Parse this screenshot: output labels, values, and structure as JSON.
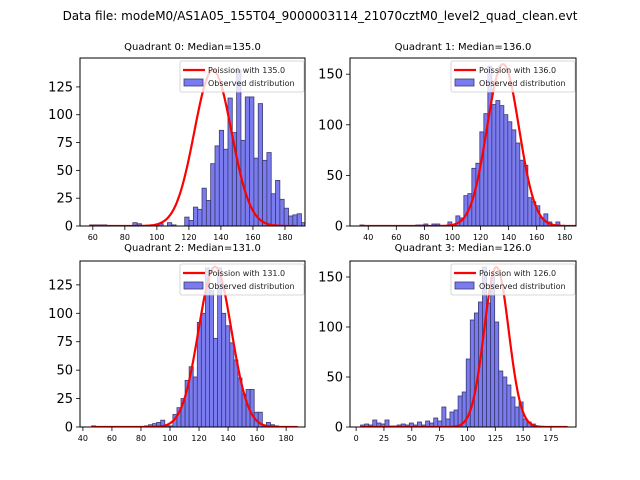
{
  "figure": {
    "suptitle": "Data file: modeM0/AS1A05_155T04_9000003114_21070cztM0_level2_quad_clean.evt"
  },
  "colors": {
    "bar_fill": "#7b7bf0",
    "bar_edge": "#3a3a70",
    "poisson_line": "#ff0000"
  },
  "chart_data": [
    {
      "type": "bar",
      "subtype": "histogram-with-curve",
      "title": "Quadrant 0: Median=135.0",
      "xlabel": "",
      "ylabel": "",
      "xlim": [
        52,
        192.5
      ],
      "ylim": [
        0,
        151
      ],
      "xticks": [
        60,
        80,
        100,
        120,
        140,
        160,
        180
      ],
      "yticks": [
        0,
        25,
        50,
        75,
        100,
        125
      ],
      "grid": false,
      "legend": {
        "placement": "top-right",
        "entries": [
          "Poission with 135.0",
          "Observed distribution"
        ]
      },
      "bin_width": 2.7,
      "bins_start": 58,
      "counts": [
        1,
        1,
        1,
        1,
        0,
        0,
        0,
        0,
        0,
        0,
        3,
        2,
        0,
        0,
        0,
        1,
        2,
        0,
        3,
        1,
        0,
        0,
        8,
        5,
        17,
        15,
        34,
        23,
        56,
        72,
        86,
        69,
        115,
        84,
        140,
        77,
        116,
        116,
        61,
        110,
        59,
        66,
        29,
        41,
        24,
        16,
        9,
        10,
        11,
        3,
        6,
        3,
        3,
        1
      ],
      "poisson": {
        "mean": 135.0,
        "peak": 140,
        "sigma": 11.6,
        "x_start": 58,
        "x_end": 187
      }
    },
    {
      "type": "bar",
      "subtype": "histogram-with-curve",
      "title": "Quadrant 1: Median=136.0",
      "xlabel": "",
      "ylabel": "",
      "xlim": [
        27,
        188
      ],
      "ylim": [
        0,
        166
      ],
      "xticks": [
        40,
        60,
        80,
        100,
        120,
        140,
        160,
        180
      ],
      "yticks": [
        0,
        50,
        100,
        150
      ],
      "grid": false,
      "legend": {
        "placement": "top-right",
        "entries": [
          "Poission with 136.0",
          "Observed distribution"
        ]
      },
      "bin_width": 2.85,
      "bins_start": 34,
      "counts": [
        1,
        0,
        0,
        0,
        0,
        0,
        0,
        0,
        0,
        0,
        0,
        0,
        0,
        0,
        1,
        1,
        2,
        0,
        2,
        2,
        0,
        0,
        4,
        1,
        10,
        8,
        30,
        32,
        57,
        62,
        93,
        111,
        158,
        120,
        124,
        119,
        110,
        103,
        95,
        82,
        65,
        60,
        28,
        24,
        20,
        8,
        12,
        4,
        1,
        4
      ],
      "poisson": {
        "mean": 136.0,
        "peak": 160,
        "sigma": 11.4,
        "x_start": 34,
        "x_end": 188
      }
    },
    {
      "type": "bar",
      "subtype": "histogram-with-curve",
      "title": "Quadrant 2: Median=131.0",
      "xlabel": "",
      "ylabel": "",
      "xlim": [
        38,
        193
      ],
      "ylim": [
        0,
        146
      ],
      "xticks": [
        40,
        60,
        80,
        100,
        120,
        140,
        160,
        180
      ],
      "yticks": [
        0,
        25,
        50,
        75,
        100,
        125
      ],
      "grid": false,
      "legend": {
        "placement": "top-right",
        "entries": [
          "Poission with 131.0",
          "Observed distribution"
        ]
      },
      "bin_width": 2.8,
      "bins_start": 46,
      "counts": [
        1,
        0,
        0,
        0,
        0,
        0,
        0,
        0,
        0,
        0,
        0,
        0,
        0,
        1,
        2,
        3,
        4,
        6,
        1,
        1,
        11,
        17,
        25,
        41,
        53,
        44,
        92,
        100,
        140,
        120,
        78,
        140,
        100,
        89,
        74,
        59,
        43,
        29,
        33,
        33,
        13,
        13,
        1,
        4,
        2,
        1,
        0,
        0,
        0,
        0,
        0,
        0
      ],
      "poisson": {
        "mean": 131.0,
        "peak": 141,
        "sigma": 11.3,
        "x_start": 46,
        "x_end": 188
      }
    },
    {
      "type": "bar",
      "subtype": "histogram-with-curve",
      "title": "Quadrant 3: Median=126.0",
      "xlabel": "",
      "ylabel": "",
      "xlim": [
        -5.5,
        197.5
      ],
      "ylim": [
        0,
        166
      ],
      "xticks": [
        0,
        25,
        50,
        75,
        100,
        125,
        150,
        175
      ],
      "yticks": [
        0,
        50,
        100,
        150
      ],
      "grid": false,
      "legend": {
        "placement": "top-right",
        "entries": [
          "Poission with 126.0",
          "Observed distribution"
        ]
      },
      "bin_width": 3.65,
      "bins_start": 4,
      "counts": [
        2,
        3,
        2,
        7,
        4,
        3,
        7,
        1,
        1,
        2,
        3,
        2,
        4,
        2,
        5,
        2,
        6,
        4,
        9,
        6,
        20,
        8,
        15,
        17,
        31,
        35,
        68,
        107,
        114,
        125,
        160,
        124,
        150,
        105,
        56,
        50,
        42,
        30,
        20,
        25,
        8,
        5,
        3,
        0,
        0,
        0,
        0,
        0,
        0
      ],
      "poisson": {
        "mean": 126.0,
        "peak": 160,
        "sigma": 11.0,
        "x_start": 4,
        "x_end": 190
      }
    }
  ]
}
